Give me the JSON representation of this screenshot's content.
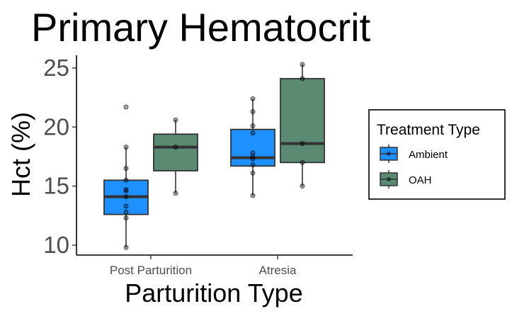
{
  "chart_data": {
    "type": "box",
    "title": "Primary Hematocrit",
    "xlabel": "Parturition Type",
    "ylabel": "Hct (%)",
    "categories": [
      "Post Parturition",
      "Atresia"
    ],
    "ylim": [
      9.5,
      26
    ],
    "yticks": [
      10,
      15,
      20,
      25
    ],
    "grid": false,
    "legend": {
      "title": "Treatment Type",
      "placement": "right",
      "entries": [
        {
          "name": "Ambient",
          "color": "#1e90ff"
        },
        {
          "name": "OAH",
          "color": "#5a8a72"
        }
      ]
    },
    "series": [
      {
        "name": "Ambient",
        "color": "#1e90ff",
        "boxes": [
          {
            "category": "Post Parturition",
            "min": 9.8,
            "q1": 12.6,
            "median": 14.1,
            "q3": 15.5,
            "max": 18.3,
            "points": [
              21.7,
              18.3,
              16.5,
              15.5,
              14.7,
              14.6,
              14.1,
              13.3,
              12.8,
              12.3,
              9.8
            ]
          },
          {
            "category": "Atresia",
            "min": 14.2,
            "q1": 16.7,
            "median": 17.4,
            "q3": 19.8,
            "max": 22.4,
            "points": [
              22.4,
              21.3,
              20.1,
              19.5,
              17.8,
              17.5,
              17.3,
              16.8,
              16.1,
              14.2
            ]
          }
        ]
      },
      {
        "name": "OAH",
        "color": "#5a8a72",
        "boxes": [
          {
            "category": "Post Parturition",
            "min": 14.4,
            "q1": 16.3,
            "median": 18.3,
            "q3": 19.4,
            "max": 20.6,
            "points": [
              20.6,
              18.3,
              14.4
            ]
          },
          {
            "category": "Atresia",
            "min": 15.0,
            "q1": 17.0,
            "median": 18.6,
            "q3": 24.1,
            "max": 25.3,
            "points": [
              25.3,
              24.1,
              18.6,
              17.0,
              15.0
            ]
          }
        ]
      }
    ]
  }
}
